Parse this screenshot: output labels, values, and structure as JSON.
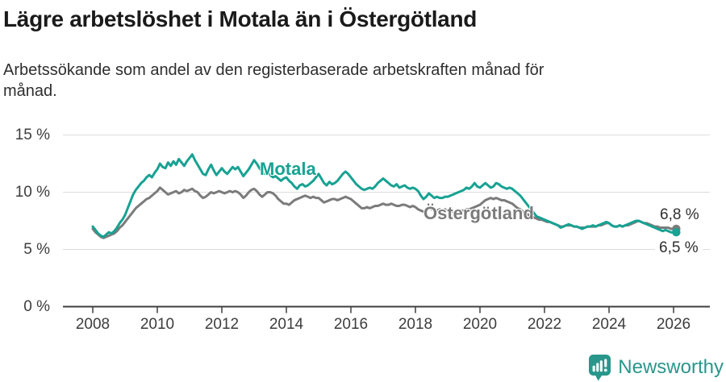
{
  "header": {
    "title": "Lägre arbetslöshet i Motala än i Östergötland",
    "subtitle": "Arbetssökande som andel av den registerbaserade arbetskraften månad för månad."
  },
  "chart_data": {
    "type": "line",
    "x_unit": "month",
    "x_start": "2008-01",
    "x_end": "2026-02",
    "ylim": [
      0,
      15
    ],
    "grid": "horizontal",
    "legend_position": "inline-labels",
    "y_ticks": [
      {
        "value": 0,
        "label": "0 %"
      },
      {
        "value": 5,
        "label": "5 %"
      },
      {
        "value": 10,
        "label": "10 %"
      },
      {
        "value": 15,
        "label": "15 %"
      }
    ],
    "x_ticks": [
      {
        "year": 2008,
        "label": "2008"
      },
      {
        "year": 2010,
        "label": "2010"
      },
      {
        "year": 2012,
        "label": "2012"
      },
      {
        "year": 2014,
        "label": "2014"
      },
      {
        "year": 2016,
        "label": "2016"
      },
      {
        "year": 2018,
        "label": "2018"
      },
      {
        "year": 2020,
        "label": "2020"
      },
      {
        "year": 2022,
        "label": "2022"
      },
      {
        "year": 2024,
        "label": "2024"
      },
      {
        "year": 2026,
        "label": "2026"
      }
    ],
    "series": [
      {
        "name": "Östergötland",
        "color": "#7b7b7b",
        "end_label": "6,8 %",
        "end_value": 6.8,
        "values": [
          6.8,
          6.5,
          6.3,
          6.1,
          6.0,
          6.1,
          6.2,
          6.3,
          6.4,
          6.6,
          6.9,
          7.1,
          7.4,
          7.7,
          8.0,
          8.3,
          8.6,
          8.8,
          9.0,
          9.2,
          9.4,
          9.5,
          9.7,
          9.9,
          10.1,
          10.4,
          10.2,
          10.0,
          9.8,
          9.9,
          10.0,
          10.1,
          9.9,
          10.0,
          10.2,
          10.1,
          10.2,
          10.3,
          10.1,
          10.0,
          9.7,
          9.5,
          9.6,
          9.8,
          10.0,
          9.9,
          10.0,
          10.1,
          10.0,
          9.9,
          10.0,
          10.1,
          10.0,
          10.1,
          10.0,
          9.8,
          9.5,
          9.7,
          10.0,
          10.2,
          10.3,
          10.1,
          9.8,
          9.6,
          9.8,
          10.0,
          10.0,
          9.9,
          9.7,
          9.4,
          9.2,
          9.0,
          9.0,
          8.9,
          9.1,
          9.3,
          9.4,
          9.5,
          9.6,
          9.7,
          9.6,
          9.5,
          9.6,
          9.5,
          9.5,
          9.3,
          9.1,
          9.2,
          9.3,
          9.4,
          9.4,
          9.3,
          9.4,
          9.5,
          9.6,
          9.5,
          9.4,
          9.2,
          9.0,
          8.8,
          8.6,
          8.6,
          8.7,
          8.6,
          8.7,
          8.8,
          8.8,
          8.9,
          9.0,
          8.9,
          8.9,
          9.0,
          8.9,
          8.8,
          8.8,
          8.9,
          8.9,
          8.8,
          8.7,
          8.8,
          8.7,
          8.5,
          8.4,
          8.3,
          8.4,
          8.6,
          8.5,
          8.4,
          8.4,
          8.5,
          8.4,
          8.5,
          8.4,
          8.4,
          8.3,
          8.3,
          8.4,
          8.4,
          8.4,
          8.5,
          8.5,
          8.6,
          8.7,
          8.8,
          8.9,
          9.1,
          9.3,
          9.4,
          9.5,
          9.4,
          9.5,
          9.4,
          9.3,
          9.3,
          9.2,
          9.1,
          9.0,
          8.8,
          8.6,
          8.5,
          8.3,
          8.2,
          8.0,
          7.9,
          7.8,
          7.7,
          7.6,
          7.6,
          7.5,
          7.4,
          7.4,
          7.3,
          7.2,
          7.1,
          7.0,
          7.0,
          7.1,
          7.1,
          7.1,
          7.0,
          7.0,
          6.9,
          6.9,
          6.9,
          7.0,
          7.0,
          7.0,
          7.0,
          7.1,
          7.1,
          7.2,
          7.3,
          7.3,
          7.1,
          7.0,
          7.0,
          7.1,
          7.0,
          7.1,
          7.1,
          7.2,
          7.3,
          7.4,
          7.5,
          7.4,
          7.3,
          7.3,
          7.2,
          7.1,
          7.0,
          7.0,
          6.9,
          6.9,
          6.9,
          6.9,
          6.8,
          6.8,
          6.8
        ]
      },
      {
        "name": "Motala",
        "color": "#17a293",
        "end_label": "6,5 %",
        "end_value": 6.5,
        "values": [
          7.0,
          6.7,
          6.4,
          6.2,
          6.1,
          6.3,
          6.5,
          6.4,
          6.6,
          6.9,
          7.3,
          7.6,
          8.0,
          8.6,
          9.2,
          9.8,
          10.2,
          10.5,
          10.8,
          11.0,
          11.3,
          11.5,
          11.3,
          11.7,
          12.0,
          12.5,
          12.2,
          12.1,
          12.6,
          12.3,
          12.7,
          12.4,
          12.9,
          12.6,
          12.3,
          12.7,
          13.0,
          13.3,
          12.8,
          12.4,
          12.0,
          11.6,
          11.5,
          12.0,
          12.4,
          11.9,
          11.5,
          11.8,
          12.1,
          11.8,
          11.6,
          11.9,
          12.2,
          12.0,
          12.2,
          11.8,
          11.4,
          11.7,
          12.0,
          12.4,
          12.8,
          12.5,
          12.1,
          11.8,
          11.6,
          11.8,
          11.5,
          11.3,
          11.4,
          11.2,
          11.0,
          11.2,
          11.3,
          11.0,
          10.8,
          10.5,
          10.3,
          10.6,
          10.7,
          10.5,
          10.6,
          10.8,
          11.0,
          11.3,
          11.6,
          11.2,
          10.8,
          10.6,
          10.9,
          10.7,
          10.8,
          11.0,
          11.3,
          11.6,
          11.8,
          11.6,
          11.3,
          11.0,
          10.7,
          10.5,
          10.3,
          10.2,
          10.3,
          10.4,
          10.3,
          10.5,
          10.8,
          11.0,
          11.2,
          11.0,
          10.8,
          10.6,
          10.5,
          10.7,
          10.4,
          10.5,
          10.6,
          10.4,
          10.3,
          10.4,
          10.3,
          10.1,
          9.7,
          9.4,
          9.6,
          9.9,
          9.7,
          9.5,
          9.6,
          9.5,
          9.5,
          9.6,
          9.6,
          9.7,
          9.8,
          9.9,
          10.0,
          10.1,
          10.2,
          10.4,
          10.3,
          10.5,
          10.8,
          10.5,
          10.4,
          10.6,
          10.8,
          10.6,
          10.4,
          10.5,
          10.8,
          10.7,
          10.5,
          10.4,
          10.3,
          10.4,
          10.3,
          10.1,
          9.9,
          9.7,
          9.4,
          9.1,
          8.8,
          8.5,
          8.2,
          7.9,
          7.8,
          7.7,
          7.6,
          7.5,
          7.4,
          7.3,
          7.2,
          7.1,
          6.9,
          7.0,
          7.1,
          7.2,
          7.1,
          7.0,
          7.0,
          6.9,
          6.8,
          6.9,
          7.0,
          7.0,
          7.1,
          7.0,
          7.1,
          7.2,
          7.3,
          7.4,
          7.3,
          7.1,
          7.0,
          7.0,
          7.1,
          7.0,
          7.1,
          7.2,
          7.3,
          7.4,
          7.5,
          7.5,
          7.4,
          7.3,
          7.2,
          7.1,
          7.0,
          6.9,
          6.8,
          6.7,
          6.6,
          6.7,
          6.6,
          6.5,
          6.5,
          6.5
        ]
      }
    ]
  },
  "footer": {
    "brand": "Newsworthy",
    "brand_color": "#2a968b",
    "logo_icon": "newsworthy-chart-bubble-icon"
  }
}
